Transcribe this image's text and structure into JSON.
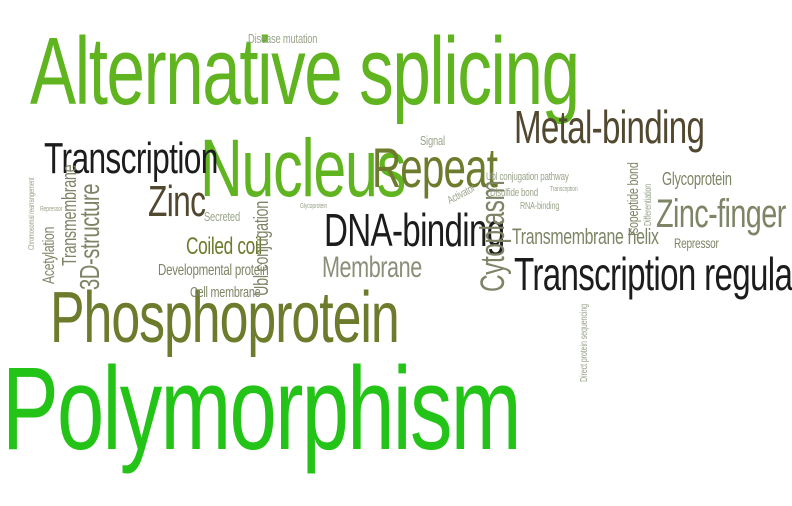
{
  "words": {
    "alternative_splicing": "Alternative splicing",
    "polymorphism": "Polymorphism",
    "phosphoprotein": "Phosphoprotein",
    "nucleus": "Nucleus",
    "repeat": "Repeat",
    "transcription": "Transcription",
    "metal_binding": "Metal-binding",
    "transcription_regulation": "Transcription regulation",
    "dna_binding": "DNA-binding",
    "zinc_finger": "Zinc-finger",
    "zinc": "Zinc",
    "membrane": "Membrane",
    "coiled_coil": "Coiled coil",
    "structure_3d": "3D-structure",
    "cytoplasm": "Cytoplasm",
    "transmembrane_helix": "Transmembrane helix",
    "transmembrane": "Transmembrane",
    "glycoprotein": "Glycoprotein",
    "ubl_conjugation": "Ubl conjugation",
    "acetylation": "Acetylation",
    "developmental_protein": "Developmental protein",
    "cell_membrane": "Cell membrane",
    "secreted": "Secreted",
    "repressor": "Repressor",
    "activator": "Activator",
    "signal": "Signal",
    "disease_mutation": "Disease mutation",
    "ubl_conjugation_pathway": "Ubl conjugation pathway",
    "disulfide_bond": "Disulfide bond",
    "rna_binding": "RNA-binding",
    "isopeptide_bond": "Isopeptide bond",
    "direct_protein_sequencing": "Direct protein sequencing",
    "differentiation": "Differentiation",
    "chromosomal_rearrangement": "Chromosomal rearrangement",
    "glycoprotein_small": "Glycoprotein",
    "transcription_small": "Transcription",
    "repressor_small": "Repressor"
  }
}
